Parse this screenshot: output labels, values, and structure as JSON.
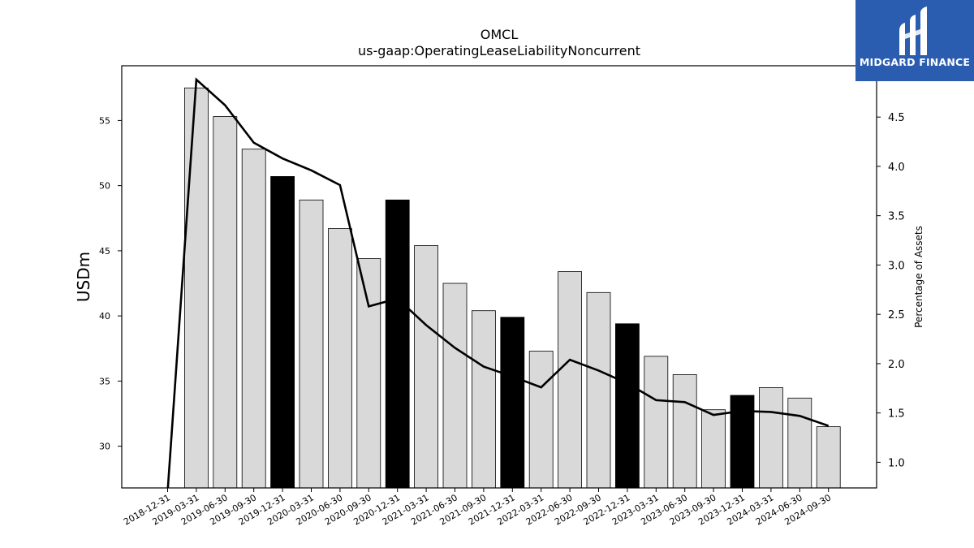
{
  "chart_data": {
    "type": "bar",
    "title": "OMCL",
    "subtitle": "us-gaap:OperatingLeaseLiabilityNoncurrent",
    "ylabel": "USDm",
    "y2label": "Percentage of Assets",
    "ylim": [
      26.8,
      59.2
    ],
    "y2lim": [
      0.74,
      5.02
    ],
    "yticks": [
      30,
      35,
      40,
      45,
      50,
      55
    ],
    "y2ticks": [
      1.0,
      1.5,
      2.0,
      2.5,
      3.0,
      3.5,
      4.0,
      4.5
    ],
    "categories": [
      "2018-12-31",
      "2019-03-31",
      "2019-06-30",
      "2019-09-30",
      "2019-12-31",
      "2020-03-31",
      "2020-06-30",
      "2020-09-30",
      "2020-12-31",
      "2021-03-31",
      "2021-06-30",
      "2021-09-30",
      "2021-12-31",
      "2022-03-31",
      "2022-06-30",
      "2022-09-30",
      "2022-12-31",
      "2023-03-31",
      "2023-06-30",
      "2023-09-30",
      "2023-12-31",
      "2024-03-31",
      "2024-06-30",
      "2024-09-30"
    ],
    "series": [
      {
        "type": "bar",
        "axis": "left",
        "values": [
          null,
          57.5,
          55.3,
          52.8,
          50.7,
          48.9,
          46.7,
          44.4,
          48.9,
          45.4,
          42.5,
          40.4,
          39.9,
          37.3,
          43.4,
          41.8,
          39.4,
          36.9,
          35.5,
          32.8,
          33.9,
          34.5,
          33.7,
          31.5
        ],
        "highlight": [
          false,
          false,
          false,
          false,
          true,
          false,
          false,
          false,
          true,
          false,
          false,
          false,
          true,
          false,
          false,
          false,
          true,
          false,
          false,
          false,
          true,
          false,
          false,
          false
        ],
        "color": "#d9d9d9",
        "highlight_color": "#000000"
      },
      {
        "type": "line",
        "axis": "right",
        "values": [
          0.7,
          4.88,
          4.62,
          4.24,
          4.08,
          3.96,
          3.81,
          2.58,
          2.66,
          2.39,
          2.16,
          1.97,
          1.87,
          1.76,
          2.04,
          1.93,
          1.8,
          1.63,
          1.61,
          1.48,
          1.52,
          1.51,
          1.47,
          1.37
        ],
        "color": "#000000"
      }
    ]
  },
  "logo": {
    "text": "MIDGARD FINANCE",
    "color": "#2a5db0"
  }
}
